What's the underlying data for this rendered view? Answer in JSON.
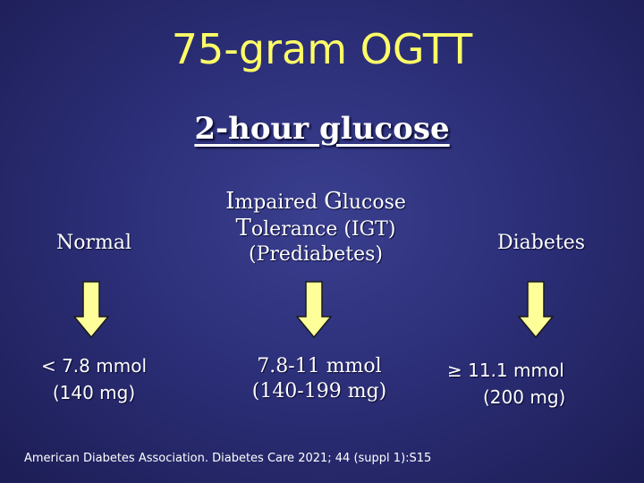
{
  "slide": {
    "title": "75-gram OGTT",
    "subtitle": "2-hour glucose",
    "columns": [
      {
        "heading": "Normal",
        "value_line1": "< 7.8 mmol",
        "value_line2": "(140 mg)"
      },
      {
        "heading_line1_cap1": "I",
        "heading_line1_rest1": "mpaired ",
        "heading_line1_cap2": "G",
        "heading_line1_rest2": "lucose",
        "heading_line2_cap": "T",
        "heading_line2_rest": "olerance (IGT)",
        "heading_line3": "(Prediabetes)",
        "value_line1": "7.8-11 mmol",
        "value_line2": "(140-199 mg)"
      },
      {
        "heading": "Diabetes",
        "value_line1": "≥ 11.1 mmol",
        "value_line2": "(200 mg)"
      }
    ],
    "citation": "American Diabetes Association. Diabetes Care 2021; 44 (suppl 1):S15",
    "icons": [
      "down-arrow-icon",
      "down-arrow-icon",
      "down-arrow-icon"
    ],
    "colors": {
      "background": "#2c2f78",
      "title": "#ffff66",
      "text": "#ffffff",
      "arrow_fill": "#ffff99"
    }
  }
}
